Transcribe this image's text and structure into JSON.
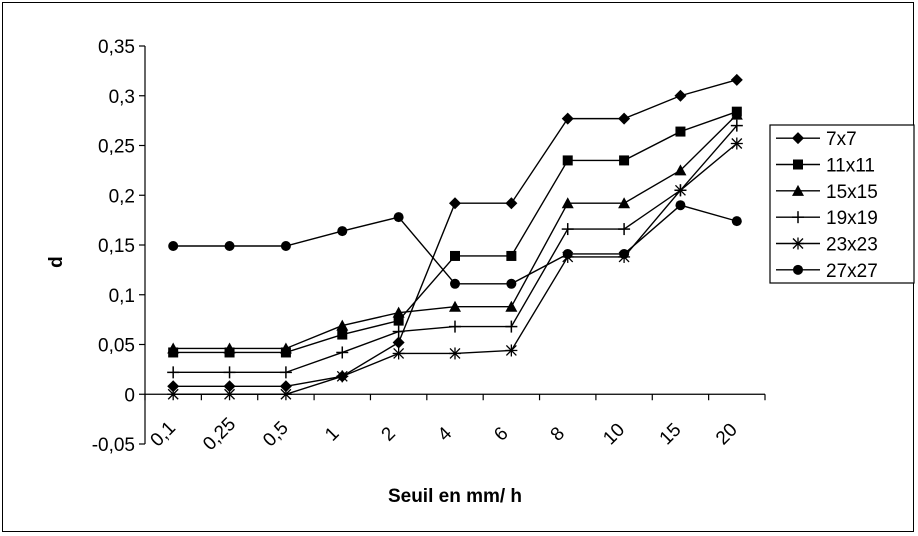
{
  "chart_data": {
    "type": "line",
    "categories": [
      "0,1",
      "0,25",
      "0,5",
      "1",
      "2",
      "4",
      "6",
      "8",
      "10",
      "15",
      "20"
    ],
    "xlabel": "Seuil en mm/ h",
    "ylabel": "d",
    "ylim": [
      -0.05,
      0.35
    ],
    "yticks": [
      "-0,05",
      "0",
      "0,05",
      "0,1",
      "0,15",
      "0,2",
      "0,25",
      "0,3",
      "0,35"
    ],
    "legend_position": "right",
    "grid": false,
    "series": [
      {
        "name": "7x7",
        "marker": "diamond",
        "values": [
          0.008,
          0.008,
          0.008,
          0.018,
          0.052,
          0.192,
          0.192,
          0.277,
          0.277,
          0.3,
          0.316
        ]
      },
      {
        "name": "11x11",
        "marker": "square",
        "values": [
          0.042,
          0.042,
          0.042,
          0.06,
          0.074,
          0.139,
          0.139,
          0.235,
          0.235,
          0.264,
          0.284
        ]
      },
      {
        "name": "15x15",
        "marker": "triangle",
        "values": [
          0.046,
          0.046,
          0.046,
          0.069,
          0.082,
          0.088,
          0.088,
          0.192,
          0.192,
          0.225,
          0.281
        ]
      },
      {
        "name": "19x19",
        "marker": "plus",
        "values": [
          0.022,
          0.022,
          0.022,
          0.042,
          0.063,
          0.068,
          0.068,
          0.166,
          0.166,
          0.205,
          0.27
        ]
      },
      {
        "name": "23x23",
        "marker": "asterisk",
        "values": [
          0.0,
          0.0,
          0.0,
          0.018,
          0.041,
          0.041,
          0.044,
          0.138,
          0.138,
          0.205,
          0.252
        ]
      },
      {
        "name": "27x27",
        "marker": "circle",
        "values": [
          0.149,
          0.149,
          0.149,
          0.164,
          0.178,
          0.111,
          0.111,
          0.141,
          0.141,
          0.19,
          0.174
        ]
      }
    ]
  }
}
